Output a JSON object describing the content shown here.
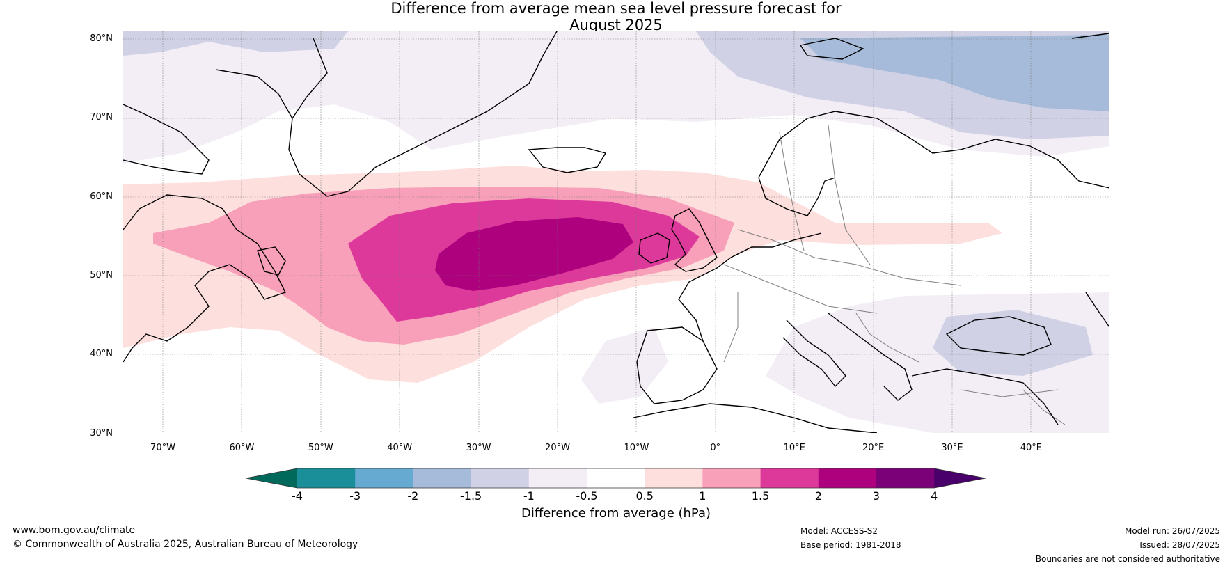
{
  "title": {
    "line1": "Difference from average mean sea level pressure forecast for",
    "line2": "August 2025"
  },
  "map": {
    "lat_labels": [
      "80°N",
      "70°N",
      "60°N",
      "50°N",
      "40°N",
      "30°N"
    ],
    "lon_labels": [
      "70°W",
      "60°W",
      "50°W",
      "40°W",
      "30°W",
      "20°W",
      "10°W",
      "0°",
      "10°E",
      "20°E",
      "30°E",
      "40°E"
    ]
  },
  "colorbar": {
    "title": "Difference from average (hPa)",
    "tick_labels": [
      "-4",
      "-3",
      "-2",
      "-1.5",
      "-1",
      "-0.5",
      "0.5",
      "1",
      "1.5",
      "2",
      "3",
      "4"
    ],
    "colors": {
      "under": "#00695c",
      "bins": [
        "#1a8f99",
        "#66a9d1",
        "#a6bbd9",
        "#d1d1e6",
        "#f3edf6",
        "#ffffff",
        "#fddfdd",
        "#f89fb9",
        "#dc399b",
        "#ad017e",
        "#7a0177"
      ],
      "over": "#49006a"
    }
  },
  "footer": {
    "website": "www.bom.gov.au/climate",
    "copyright": "© Commonwealth of Australia 2025, Australian Bureau of Meteorology",
    "model": "Model: ACCESS-S2",
    "base_period": "Base period: 1981-2018",
    "model_run": "Model run: 26/07/2025",
    "issued": "Issued: 28/07/2025",
    "disclaimer": "Boundaries are not considered authoritative"
  }
}
